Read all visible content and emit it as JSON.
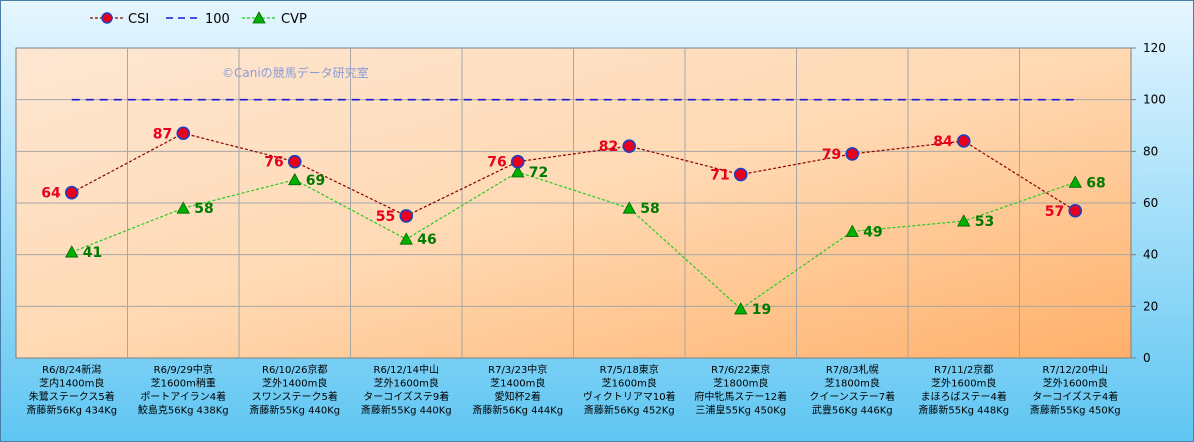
{
  "chart_data": {
    "type": "line",
    "watermark": "©Caniの競馬データ研究室",
    "categories": [
      [
        "R6/8/24新潟",
        "芝内1400m良",
        "朱鷺ステークス5着",
        "斎藤新56Kg 434Kg"
      ],
      [
        "R6/9/29中京",
        "芝1600m稍重",
        "ポートアイラン4着",
        "鮫島克56Kg 438Kg"
      ],
      [
        "R6/10/26京都",
        "芝外1400m良",
        "スワンステーク5着",
        "斎藤新55Kg 440Kg"
      ],
      [
        "R6/12/14中山",
        "芝外1600m良",
        "ターコイズステ9着",
        "斎藤新55Kg 440Kg"
      ],
      [
        "R7/3/23中京",
        "芝1400m良",
        "愛知杯2着",
        "斎藤新56Kg 444Kg"
      ],
      [
        "R7/5/18東京",
        "芝1600m良",
        "ヴィクトリアマ10着",
        "斎藤新56Kg 452Kg"
      ],
      [
        "R7/6/22東京",
        "芝1800m良",
        "府中牝馬ステー12着",
        "三浦皇55Kg 450Kg"
      ],
      [
        "R7/8/3札幌",
        "芝1800m良",
        "クイーンステー7着",
        "武豊56Kg 446Kg"
      ],
      [
        "R7/11/2京都",
        "芝外1600m良",
        "まほろばステー4着",
        "斎藤新55Kg 448Kg"
      ],
      [
        "R7/12/20中山",
        "芝外1600m良",
        "ターコイズステ4着",
        "斎藤新55Kg 450Kg"
      ]
    ],
    "series": [
      {
        "name": "CSI",
        "values": [
          64,
          87,
          76,
          55,
          76,
          82,
          71,
          79,
          84,
          57
        ],
        "color": "#8b0000",
        "marker_fill": "#e8001c",
        "marker_stroke": "#1f3fbf",
        "label_color": "#e8001c"
      },
      {
        "name": "100",
        "values": [
          100,
          100,
          100,
          100,
          100,
          100,
          100,
          100,
          100,
          100
        ],
        "color": "#1a1ad6"
      },
      {
        "name": "CVP",
        "values": [
          41,
          58,
          69,
          46,
          72,
          58,
          19,
          49,
          53,
          68
        ],
        "color": "#22cc22",
        "marker_fill": "#00b000",
        "label_color": "#007a00"
      }
    ],
    "yaxis": {
      "min": 0,
      "max": 120,
      "step": 20,
      "ticks": [
        "0",
        "20",
        "40",
        "60",
        "80",
        "100",
        "120"
      ],
      "position": "right"
    },
    "grid": true,
    "legend_position": "top-left"
  }
}
